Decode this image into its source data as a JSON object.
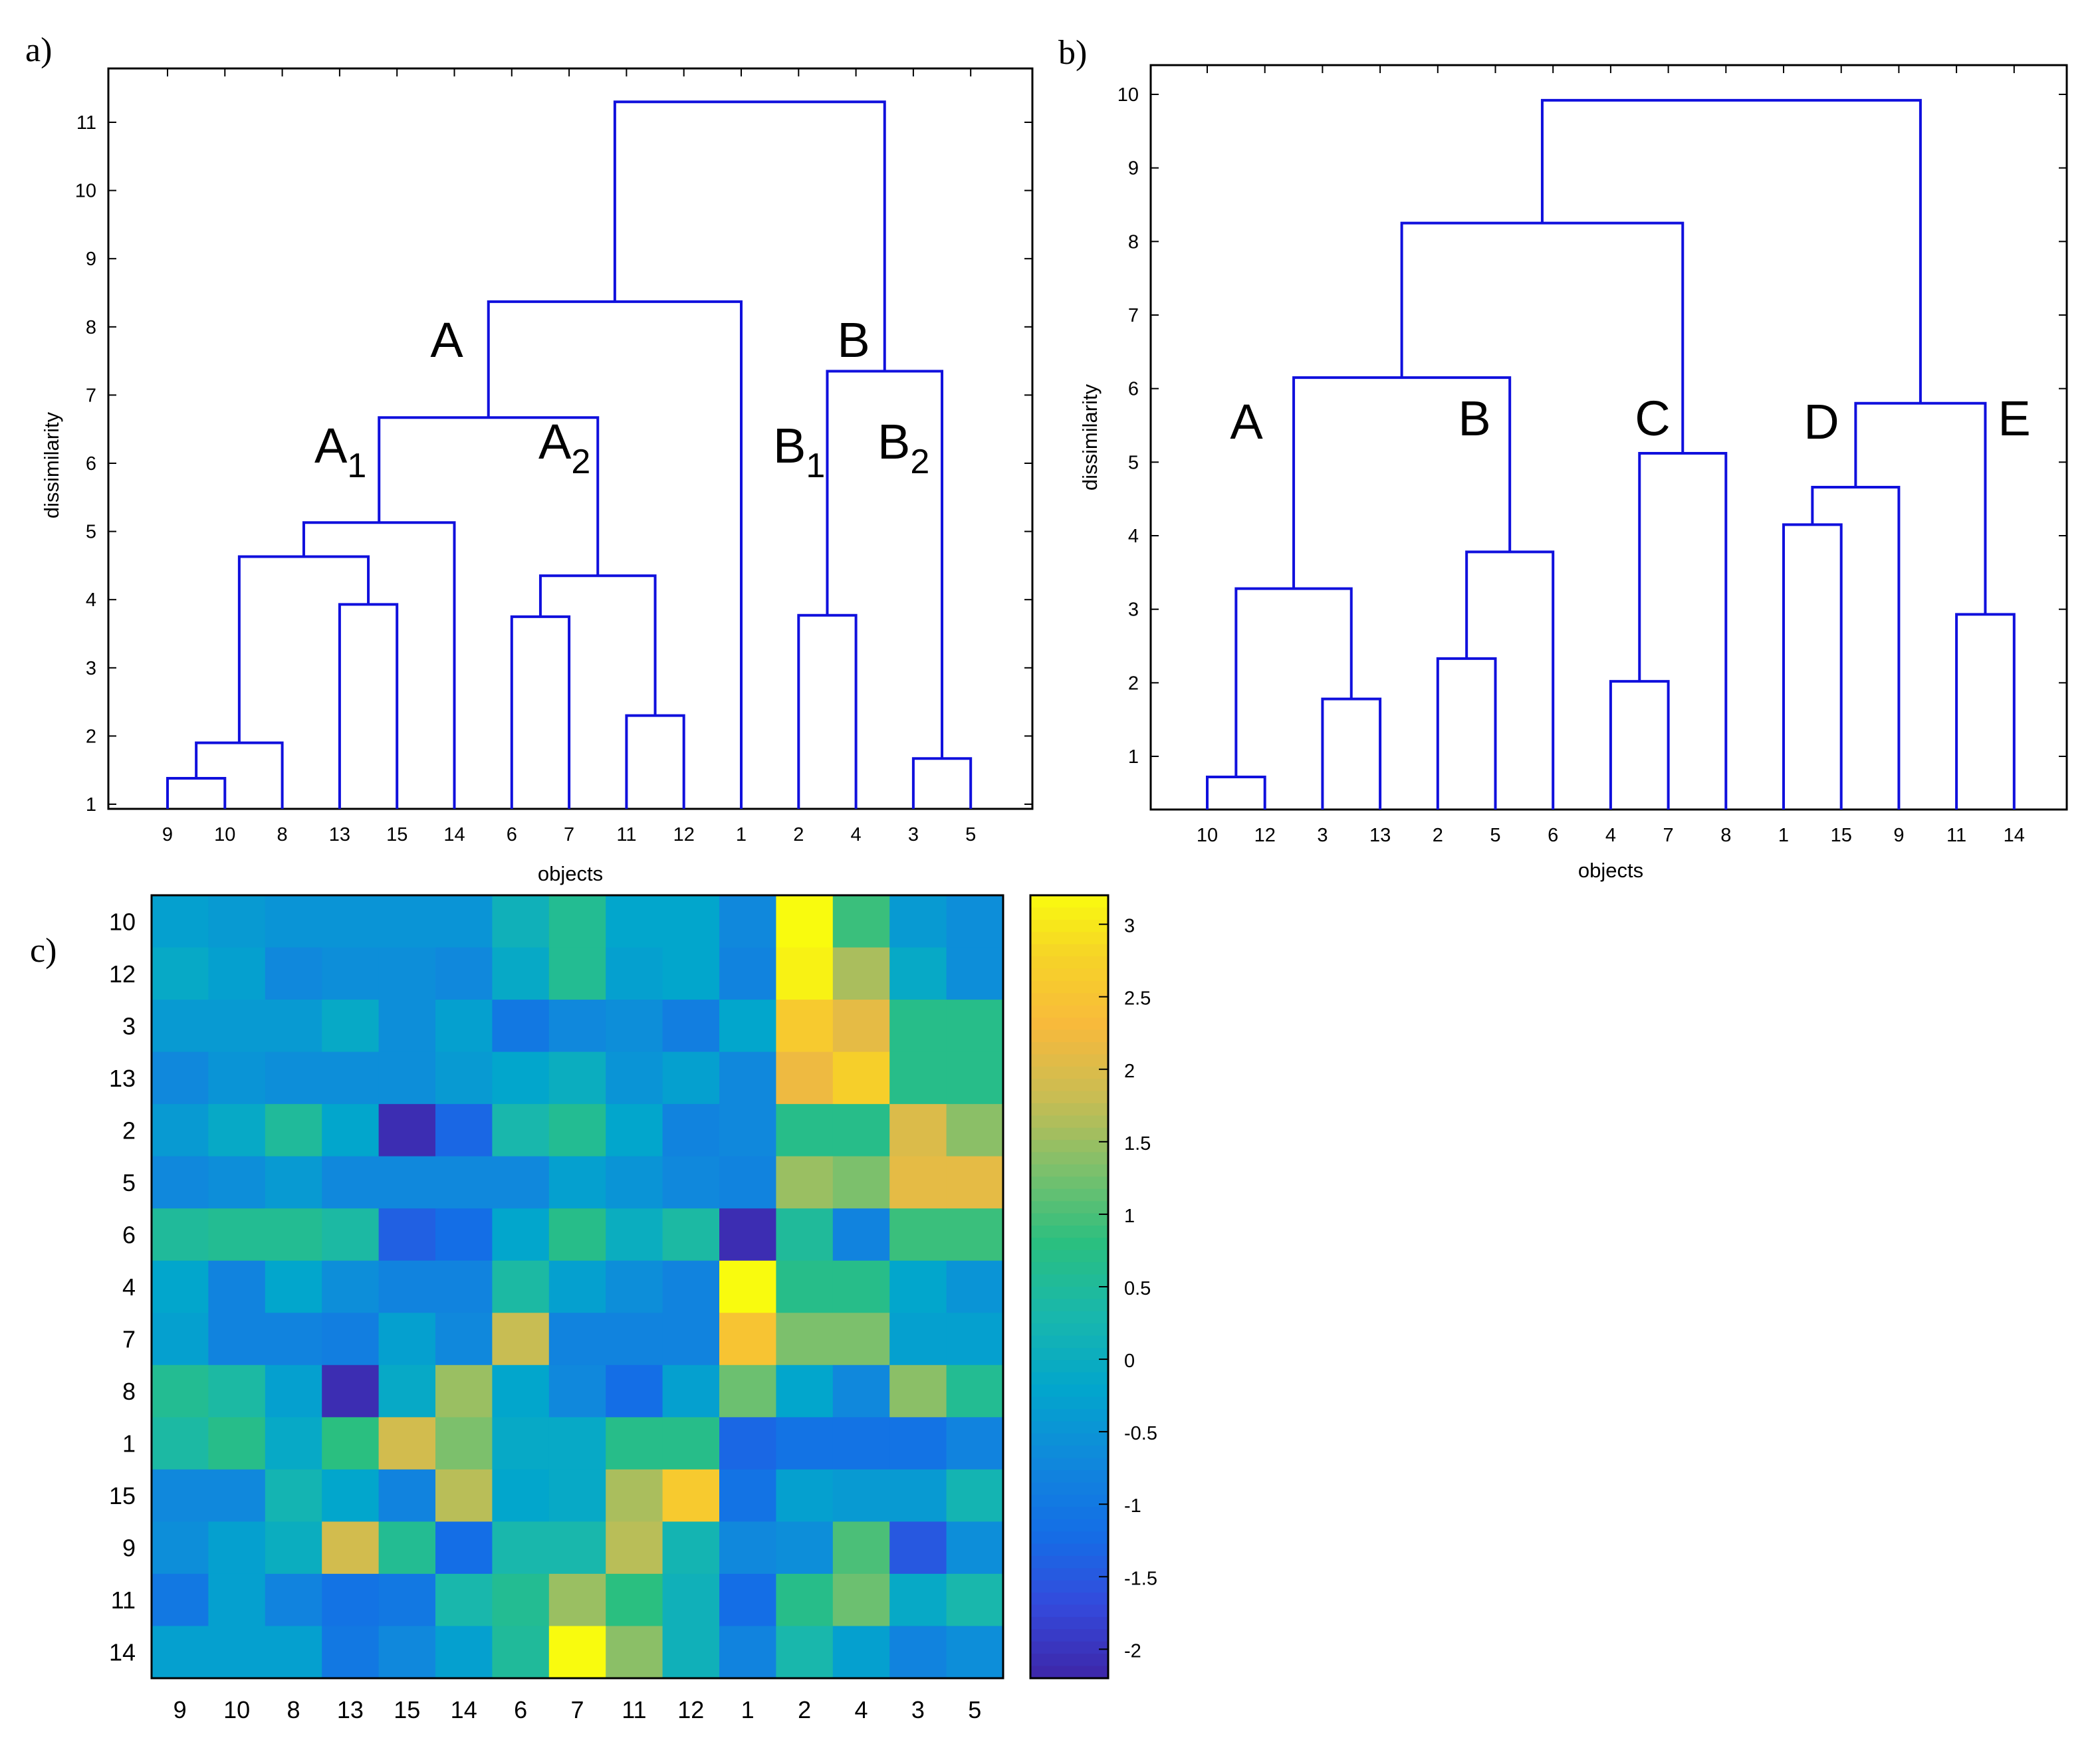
{
  "panels": {
    "a": {
      "label": "a)",
      "ylabel": "dissimilarity",
      "xlabel": "objects",
      "yticks": [
        "1",
        "2",
        "3",
        "4",
        "5",
        "6",
        "7",
        "8",
        "9",
        "10",
        "11"
      ],
      "leaves": [
        "9",
        "10",
        "8",
        "13",
        "15",
        "14",
        "6",
        "7",
        "11",
        "12",
        "1",
        "2",
        "4",
        "3",
        "5"
      ],
      "cluster_labels": [
        {
          "name": "label-A",
          "main": "A",
          "sub": ""
        },
        {
          "name": "label-B",
          "main": "B",
          "sub": ""
        },
        {
          "name": "label-A1",
          "main": "A",
          "sub": "1"
        },
        {
          "name": "label-A2",
          "main": "A",
          "sub": "2"
        },
        {
          "name": "label-B1",
          "main": "B",
          "sub": "1"
        },
        {
          "name": "label-B2",
          "main": "B",
          "sub": "2"
        }
      ]
    },
    "b": {
      "label": "b)",
      "ylabel": "dissimilarity",
      "xlabel": "objects",
      "yticks": [
        "1",
        "2",
        "3",
        "4",
        "5",
        "6",
        "7",
        "8",
        "9",
        "10"
      ],
      "leaves": [
        "10",
        "12",
        "3",
        "13",
        "2",
        "5",
        "6",
        "4",
        "7",
        "8",
        "1",
        "15",
        "9",
        "11",
        "14"
      ],
      "cluster_labels": [
        {
          "name": "label-A",
          "main": "A",
          "sub": ""
        },
        {
          "name": "label-B",
          "main": "B",
          "sub": ""
        },
        {
          "name": "label-C",
          "main": "C",
          "sub": ""
        },
        {
          "name": "label-D",
          "main": "D",
          "sub": ""
        },
        {
          "name": "label-E",
          "main": "E",
          "sub": ""
        }
      ]
    },
    "c": {
      "label": "c)",
      "row_labels": [
        "10",
        "12",
        "3",
        "13",
        "2",
        "5",
        "6",
        "4",
        "7",
        "8",
        "1",
        "15",
        "9",
        "11",
        "14"
      ],
      "col_labels": [
        "9",
        "10",
        "8",
        "13",
        "15",
        "14",
        "6",
        "7",
        "11",
        "12",
        "1",
        "2",
        "4",
        "3",
        "5"
      ],
      "colorbar_ticks": [
        "3",
        "2.5",
        "2",
        "1.5",
        "1",
        "0.5",
        "0",
        "-0.5",
        "-1",
        "-1.5",
        "-2"
      ]
    }
  },
  "chart_data": [
    {
      "type": "dendrogram",
      "panel": "a",
      "xlabel": "objects",
      "ylabel": "dissimilarity",
      "ylim": [
        0.9,
        11.6
      ],
      "leaf_order": [
        "9",
        "10",
        "8",
        "13",
        "15",
        "14",
        "6",
        "7",
        "11",
        "12",
        "1",
        "2",
        "4",
        "3",
        "5"
      ],
      "merges": [
        {
          "left": "9",
          "right": "10",
          "height": 1.38
        },
        {
          "left": "9,10",
          "right": "8",
          "height": 1.9
        },
        {
          "left": "13",
          "right": "15",
          "height": 3.93
        },
        {
          "left": "9,10,8",
          "right": "13,15",
          "height": 4.63
        },
        {
          "left": "9,10,8,13,15",
          "right": "14",
          "height": 5.13
        },
        {
          "left": "6",
          "right": "7",
          "height": 3.75
        },
        {
          "left": "11",
          "right": "12",
          "height": 2.3
        },
        {
          "left": "6,7",
          "right": "11,12",
          "height": 4.35
        },
        {
          "left": "A1",
          "right": "A2",
          "height": 6.67
        },
        {
          "left": "A1,A2",
          "right": "1",
          "height": 8.37
        },
        {
          "left": "2",
          "right": "4",
          "height": 3.77
        },
        {
          "left": "3",
          "right": "5",
          "height": 1.67
        },
        {
          "left": "2,4",
          "right": "3,5",
          "height": 7.35
        },
        {
          "left": "A",
          "right": "B",
          "height": 11.3
        }
      ]
    },
    {
      "type": "dendrogram",
      "panel": "b",
      "xlabel": "objects",
      "ylabel": "dissimilarity",
      "ylim": [
        0.2,
        10.4
      ],
      "leaf_order": [
        "10",
        "12",
        "3",
        "13",
        "2",
        "5",
        "6",
        "4",
        "7",
        "8",
        "1",
        "15",
        "9",
        "11",
        "14"
      ],
      "merges": [
        {
          "left": "10",
          "right": "12",
          "height": 0.72
        },
        {
          "left": "3",
          "right": "13",
          "height": 1.78
        },
        {
          "left": "10,12",
          "right": "3,13",
          "height": 3.28
        },
        {
          "left": "2",
          "right": "5",
          "height": 2.33
        },
        {
          "left": "2,5",
          "right": "6",
          "height": 3.78
        },
        {
          "left": "A",
          "right": "B",
          "height": 6.15
        },
        {
          "left": "4",
          "right": "7",
          "height": 2.02
        },
        {
          "left": "4,7",
          "right": "8",
          "height": 5.12
        },
        {
          "left": "A,B",
          "right": "C",
          "height": 8.25
        },
        {
          "left": "1",
          "right": "15",
          "height": 4.15
        },
        {
          "left": "1,15",
          "right": "9",
          "height": 4.66
        },
        {
          "left": "11",
          "right": "14",
          "height": 2.93
        },
        {
          "left": "D",
          "right": "E",
          "height": 5.8
        },
        {
          "left": "A,B,C",
          "right": "D,E",
          "height": 9.92
        }
      ]
    },
    {
      "type": "heatmap",
      "panel": "c",
      "row_labels": [
        "10",
        "12",
        "3",
        "13",
        "2",
        "5",
        "6",
        "4",
        "7",
        "8",
        "1",
        "15",
        "9",
        "11",
        "14"
      ],
      "col_labels": [
        "9",
        "10",
        "8",
        "13",
        "15",
        "14",
        "6",
        "7",
        "11",
        "12",
        "1",
        "2",
        "4",
        "3",
        "5"
      ],
      "colorbar_range": [
        -2.2,
        3.2
      ],
      "colorbar_ticks": [
        -2,
        -1.5,
        -1,
        -0.5,
        0,
        0.5,
        1,
        1.5,
        2,
        2.5,
        3
      ],
      "values": [
        [
          -0.3,
          -0.4,
          -0.5,
          -0.5,
          -0.5,
          -0.5,
          0.1,
          0.6,
          -0.2,
          -0.2,
          -0.7,
          3.2,
          0.9,
          -0.4,
          -0.6
        ],
        [
          -0.1,
          -0.3,
          -0.7,
          -0.6,
          -0.6,
          -0.7,
          -0.1,
          0.6,
          -0.3,
          -0.2,
          -0.8,
          3.1,
          1.6,
          -0.1,
          -0.6
        ],
        [
          -0.4,
          -0.4,
          -0.4,
          -0.1,
          -0.6,
          -0.3,
          -1.0,
          -0.7,
          -0.6,
          -0.9,
          -0.2,
          2.6,
          2.1,
          0.7,
          0.7
        ],
        [
          -0.7,
          -0.5,
          -0.6,
          -0.6,
          -0.6,
          -0.4,
          -0.2,
          0.0,
          -0.5,
          -0.3,
          -0.7,
          2.2,
          2.7,
          0.7,
          0.7
        ],
        [
          -0.4,
          -0.1,
          0.5,
          -0.2,
          -2.1,
          -1.3,
          0.3,
          0.6,
          -0.2,
          -0.8,
          -0.7,
          0.7,
          0.7,
          2.0,
          1.4
        ],
        [
          -0.7,
          -0.6,
          -0.4,
          -0.7,
          -0.7,
          -0.7,
          -0.7,
          -0.3,
          -0.5,
          -0.7,
          -0.8,
          1.5,
          1.3,
          2.1,
          2.1
        ],
        [
          0.5,
          0.6,
          0.6,
          0.4,
          -1.4,
          -1.2,
          -0.2,
          0.7,
          0.0,
          0.4,
          -2.1,
          0.5,
          -0.8,
          0.9,
          0.9
        ],
        [
          -0.2,
          -0.8,
          -0.2,
          -0.6,
          -0.8,
          -0.8,
          0.4,
          -0.3,
          -0.6,
          -0.8,
          3.2,
          0.7,
          0.7,
          -0.2,
          -0.5
        ],
        [
          -0.3,
          -0.8,
          -0.8,
          -0.9,
          -0.3,
          -0.7,
          1.8,
          -0.8,
          -0.8,
          -0.8,
          2.5,
          1.3,
          1.3,
          -0.3,
          -0.3
        ],
        [
          0.6,
          0.4,
          -0.3,
          -2.1,
          -0.1,
          1.5,
          -0.2,
          -0.7,
          -1.2,
          -0.3,
          1.2,
          -0.2,
          -0.7,
          1.4,
          0.6
        ],
        [
          0.4,
          0.7,
          -0.1,
          0.8,
          1.9,
          1.3,
          -0.1,
          -0.1,
          0.7,
          0.7,
          -1.3,
          -1.1,
          -1.1,
          -1.1,
          -0.8
        ],
        [
          -0.7,
          -0.7,
          0.2,
          -0.2,
          -0.8,
          1.7,
          -0.2,
          -0.1,
          1.6,
          2.6,
          -1.1,
          -0.3,
          -0.4,
          -0.4,
          0.2
        ],
        [
          -0.6,
          -0.3,
          0.0,
          1.9,
          0.6,
          -1.2,
          0.3,
          0.3,
          1.7,
          0.2,
          -0.7,
          -0.6,
          1.0,
          -1.5,
          -0.6
        ],
        [
          -1.0,
          -0.3,
          -0.8,
          -1.1,
          -1.0,
          0.3,
          0.6,
          1.5,
          0.8,
          0.1,
          -1.2,
          0.7,
          1.2,
          -0.1,
          0.3
        ],
        [
          -0.3,
          -0.3,
          -0.3,
          -1.0,
          -0.7,
          -0.3,
          0.5,
          3.2,
          1.4,
          0.1,
          -0.8,
          0.3,
          -0.3,
          -0.8,
          -0.6
        ]
      ]
    }
  ]
}
